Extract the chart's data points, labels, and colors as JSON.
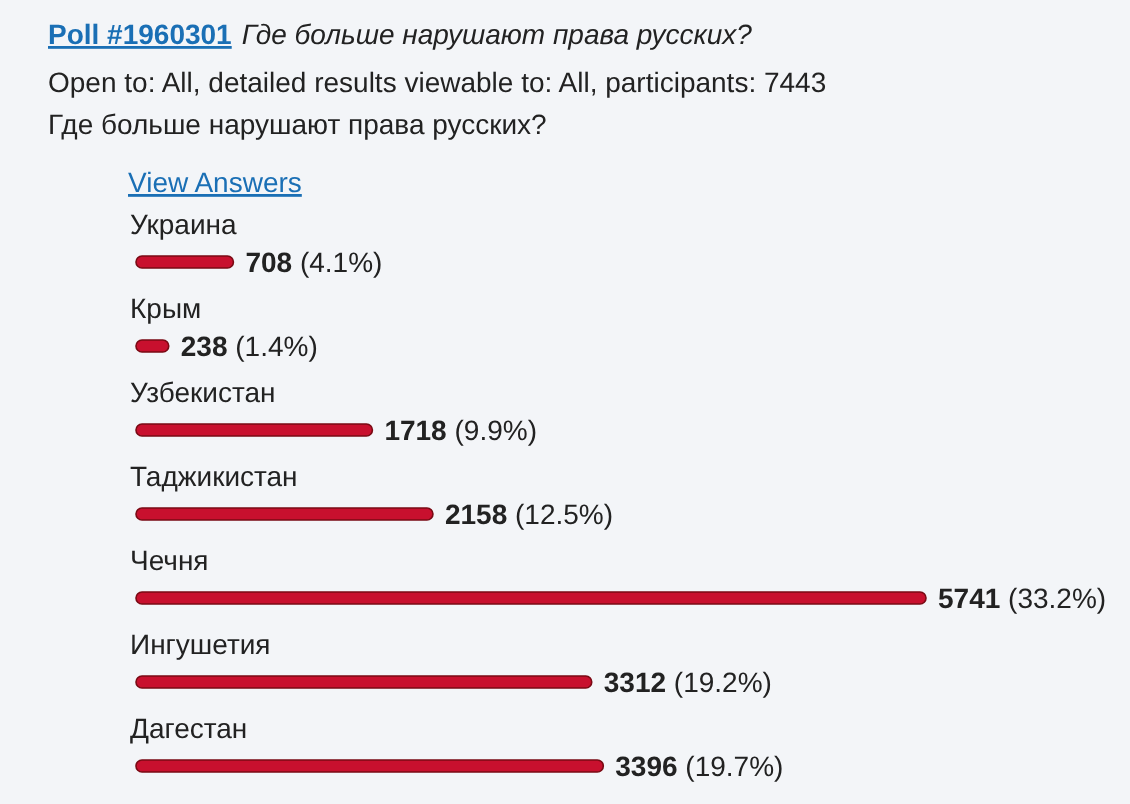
{
  "chart_data": {
    "type": "bar",
    "orientation": "horizontal",
    "title": "Poll #1960301",
    "subtitle": "Где больше нарушают права русских?",
    "annotations": [
      "Open to: All, detailed results viewable to: All, participants: 7443",
      "Где больше нарушают права русских?",
      "View Answers"
    ],
    "categories": [
      "Украина",
      "Крым",
      "Узбекистан",
      "Таджикистан",
      "Чечня",
      "Ингушетия",
      "Дагестан"
    ],
    "values": [
      708,
      238,
      1718,
      2158,
      5741,
      3312,
      3396
    ],
    "value_labels": [
      "708 (4.1%)",
      "238 (1.4%)",
      "1718 (9.9%)",
      "2158 (12.5%)",
      "5741 (33.2%)",
      "3312 (19.2%)",
      "3396 (19.7%)"
    ],
    "color": "#c8102e"
  }
}
